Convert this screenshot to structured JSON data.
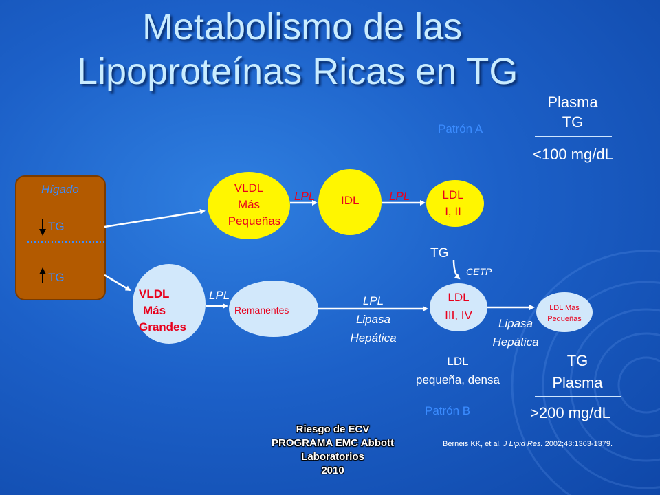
{
  "title": {
    "line1": "Metabolismo de las",
    "line2": "Lipoproteínas Ricas en TG"
  },
  "plasma_top": {
    "l1": "Plasma",
    "l2": "TG",
    "value": "<100 mg/dL"
  },
  "patron_a": "Patrón A",
  "patron_b": "Patrón B",
  "liver": {
    "label": "Hígado",
    "tg_down": "TG",
    "tg_up": "TG"
  },
  "vldl_small": {
    "l1": "VLDL",
    "l2": "Más",
    "l3": "Pequeñas"
  },
  "idl": "IDL",
  "ldl_12": {
    "l1": "LDL",
    "l2": "I, II"
  },
  "lpl1": "LPL",
  "lpl2": "LPL",
  "vldl_large": {
    "l1": "VLDL",
    "l2": "Más",
    "l3": "Grandes"
  },
  "lpl3": "LPL",
  "remanentes": "Remanentes",
  "lpl_lipasa": {
    "l1": "LPL",
    "l2": "Lipasa",
    "l3": "Hepática"
  },
  "ldl_34": {
    "l1": "LDL",
    "l2": "III, IV"
  },
  "tg_cetp": {
    "tg": "TG",
    "cetp": "CETP"
  },
  "lipasa2": {
    "l1": "Lipasa",
    "l2": "Hepática"
  },
  "ldl_small": {
    "l1": "LDL Más",
    "l2": "Pequeñas"
  },
  "ldl_dense": {
    "l1": "LDL",
    "l2": "pequeña, densa"
  },
  "plasma_bottom": {
    "l1": "TG",
    "l2": "Plasma",
    "value": ">200 mg/dL"
  },
  "footer": {
    "l1": "Riesgo de ECV",
    "l2": "PROGRAMA EMC Abbott",
    "l3": "Laboratorios",
    "l4": "2010"
  },
  "citation": {
    "authors": "Berneis KK, et al. ",
    "journal": "J Lipid Res.",
    "rest": " 2002;43:1363-1379."
  },
  "colors": {
    "yellow": "#fff600",
    "light_blue": "#d2e8fb",
    "liver": "#b35a00",
    "red": "#e8001c"
  }
}
